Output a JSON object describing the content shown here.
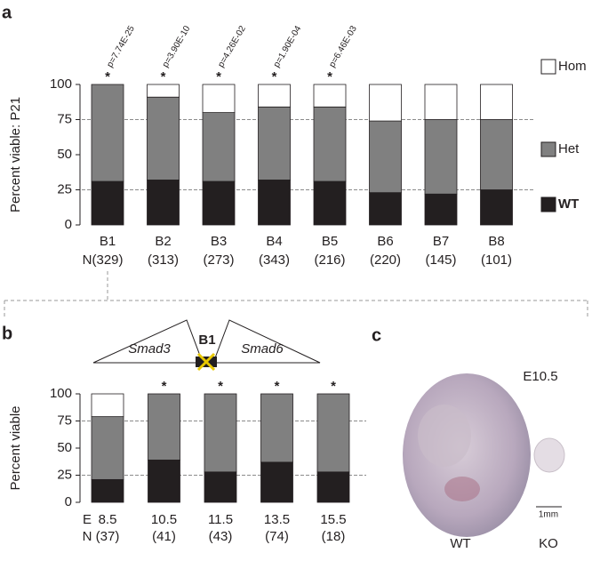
{
  "chart_data": [
    {
      "type": "bar",
      "stacked": true,
      "panel_label": "a",
      "ylabel": "Percent viable: P21",
      "categories": [
        "B1",
        "B2",
        "B3",
        "B4",
        "B5",
        "B6",
        "B7",
        "B8"
      ],
      "n_prefix": "N",
      "n_labels": [
        "(329)",
        "(313)",
        "(273)",
        "(343)",
        "(216)",
        "(220)",
        "(145)",
        "(101)"
      ],
      "annotations": [
        "p=7.74E-25",
        "p=3.90E-10",
        "p=4.26E-02",
        "p=1.90E-04",
        "p=6.46E-03",
        null,
        null,
        null
      ],
      "marker": "*",
      "significant": [
        true,
        true,
        true,
        true,
        true,
        false,
        false,
        false
      ],
      "series": [
        {
          "name": "WT",
          "color": "#231f20",
          "values": [
            31,
            32,
            31,
            32,
            31,
            23,
            22,
            25
          ]
        },
        {
          "name": "Het",
          "color": "#808080",
          "values": [
            69,
            59,
            49,
            52,
            53,
            51,
            53,
            50
          ]
        },
        {
          "name": "Hom",
          "color": "#ffffff",
          "values": [
            0,
            9,
            20,
            16,
            16,
            26,
            25,
            25
          ]
        }
      ],
      "ylim": [
        0,
        100
      ],
      "yticks": [
        0,
        25,
        50,
        75,
        100
      ],
      "hlines": [
        25,
        75
      ],
      "legend": true
    },
    {
      "type": "bar",
      "stacked": true,
      "panel_label": "b",
      "ylabel": "Percent viable",
      "x_prefix": "E",
      "categories": [
        "8.5",
        "10.5",
        "11.5",
        "13.5",
        "15.5"
      ],
      "n_prefix": "N",
      "n_labels": [
        "(37)",
        "(41)",
        "(43)",
        "(74)",
        "(18)"
      ],
      "marker": "*",
      "significant": [
        false,
        true,
        true,
        true,
        true
      ],
      "series": [
        {
          "name": "WT",
          "color": "#231f20",
          "values": [
            21,
            39,
            28,
            37,
            28
          ]
        },
        {
          "name": "Het",
          "color": "#808080",
          "values": [
            58,
            61,
            72,
            63,
            72
          ]
        },
        {
          "name": "Hom",
          "color": "#ffffff",
          "values": [
            21,
            0,
            0,
            0,
            0
          ]
        }
      ],
      "ylim": [
        0,
        100
      ],
      "yticks": [
        0,
        25,
        50,
        75,
        100
      ],
      "hlines": [
        25,
        75
      ],
      "legend": false
    }
  ],
  "schematic": {
    "left_gene": "Smad3",
    "locus": "B1",
    "right_gene": "Smad6"
  },
  "panel_c": {
    "panel_label": "c",
    "stage": "E10.5",
    "scale_bar": "1mm",
    "left_label": "WT",
    "right_label": "KO"
  }
}
